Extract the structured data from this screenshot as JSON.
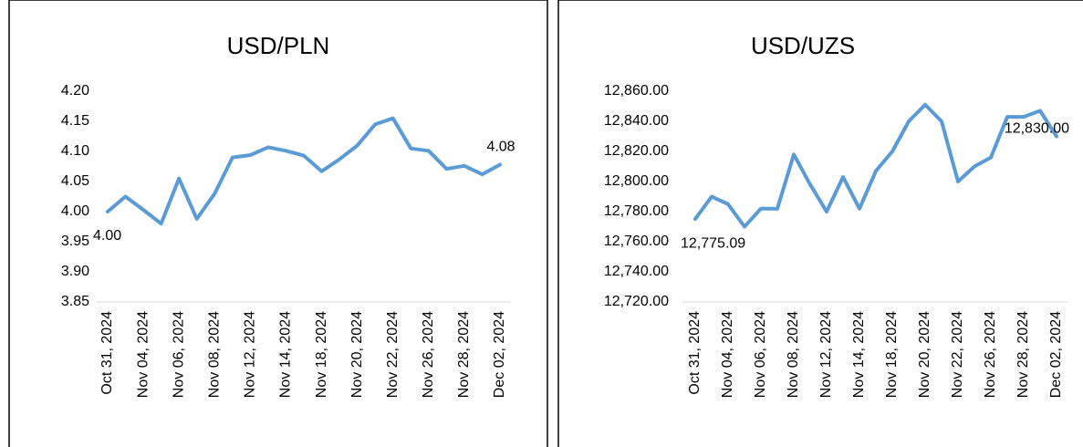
{
  "chart_data": [
    {
      "type": "line",
      "title": "USD/PLN",
      "categories": [
        "Oct 31, 2024",
        null,
        "Nov 04, 2024",
        null,
        "Nov 06, 2024",
        null,
        "Nov 08, 2024",
        null,
        "Nov 12, 2024",
        null,
        "Nov 14, 2024",
        null,
        "Nov 18, 2024",
        null,
        "Nov 20, 2024",
        null,
        "Nov 22, 2024",
        null,
        "Nov 26, 2024",
        null,
        "Nov 28, 2024",
        null,
        "Dec 02, 2024"
      ],
      "values": [
        4.0,
        4.025,
        4.003,
        3.98,
        4.055,
        3.988,
        4.03,
        4.09,
        4.094,
        4.107,
        4.101,
        4.093,
        4.067,
        4.087,
        4.11,
        4.145,
        4.155,
        4.105,
        4.101,
        4.071,
        4.076,
        4.062,
        4.078
      ],
      "value_labels": [
        "4.00",
        null,
        null,
        null,
        null,
        null,
        null,
        null,
        null,
        null,
        null,
        null,
        null,
        null,
        null,
        null,
        null,
        null,
        null,
        null,
        null,
        null,
        "4.08"
      ],
      "color": "#5b9bd5",
      "ylim": [
        3.85,
        4.2
      ],
      "yticks": [
        {
          "value": 3.85,
          "label": "3.85"
        },
        {
          "value": 3.9,
          "label": "3.90"
        },
        {
          "value": 3.95,
          "label": "3.95"
        },
        {
          "value": 4.0,
          "label": "4.00"
        },
        {
          "value": 4.05,
          "label": "4.05"
        },
        {
          "value": 4.1,
          "label": "4.10"
        },
        {
          "value": 4.15,
          "label": "4.15"
        },
        {
          "value": 4.2,
          "label": "4.20"
        }
      ]
    },
    {
      "type": "line",
      "title": "USD/UZS",
      "categories": [
        "Oct 31, 2024",
        null,
        "Nov 04, 2024",
        null,
        "Nov 06, 2024",
        null,
        "Nov 08, 2024",
        null,
        "Nov 12, 2024",
        null,
        "Nov 14, 2024",
        null,
        "Nov 18, 2024",
        null,
        "Nov 20, 2024",
        null,
        "Nov 22, 2024",
        null,
        "Nov 26, 2024",
        null,
        "Nov 28, 2024",
        null,
        "Dec 02, 2024"
      ],
      "values": [
        12775.09,
        12790,
        12785,
        12770,
        12782,
        12782,
        12818,
        12798,
        12780,
        12803,
        12782,
        12807,
        12820,
        12840,
        12851,
        12840,
        12800,
        12810,
        12816,
        12843,
        12843,
        12847,
        12830.0
      ],
      "value_labels": [
        "12,775.09",
        null,
        null,
        null,
        null,
        null,
        null,
        null,
        null,
        null,
        null,
        null,
        null,
        null,
        null,
        null,
        null,
        null,
        null,
        null,
        null,
        null,
        "12,830.00"
      ],
      "color": "#5b9bd5",
      "ylim": [
        12720,
        12860
      ],
      "yticks": [
        {
          "value": 12720,
          "label": "12,720.00"
        },
        {
          "value": 12740,
          "label": "12,740.00"
        },
        {
          "value": 12760,
          "label": "12,760.00"
        },
        {
          "value": 12780,
          "label": "12,780.00"
        },
        {
          "value": 12800,
          "label": "12,800.00"
        },
        {
          "value": 12820,
          "label": "12,820.00"
        },
        {
          "value": 12840,
          "label": "12,840.00"
        },
        {
          "value": 12860,
          "label": "12,860.00"
        }
      ]
    }
  ]
}
